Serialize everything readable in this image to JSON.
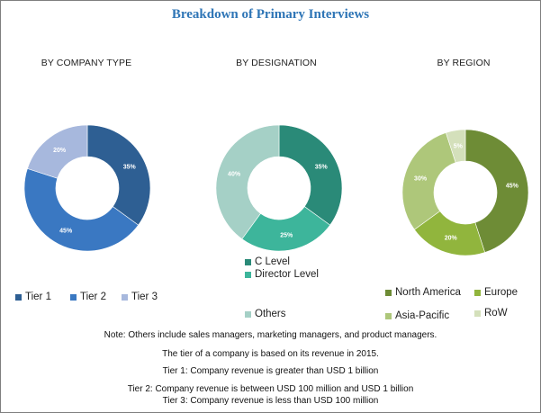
{
  "title": "Breakdown of Primary Interviews",
  "chart_data": [
    {
      "type": "pie",
      "title": "BY COMPANY TYPE",
      "categories": [
        "Tier 1",
        "Tier 2",
        "Tier 3"
      ],
      "values": [
        35,
        45,
        20
      ],
      "labels": [
        "35%",
        "45%",
        "20%"
      ],
      "colors": [
        "#2e5f93",
        "#3a78c2",
        "#a7b8dd"
      ],
      "legend": "bottom"
    },
    {
      "type": "pie",
      "title": "BY DESIGNATION",
      "categories": [
        "C Level",
        "Director Level",
        "Others"
      ],
      "values": [
        35,
        25,
        40
      ],
      "labels": [
        "35%",
        "25%",
        "40%"
      ],
      "colors": [
        "#2a8a78",
        "#3db59b",
        "#a5d0c6"
      ],
      "legend": "bottom"
    },
    {
      "type": "pie",
      "title": "BY REGION",
      "categories": [
        "North America",
        "Europe",
        "Asia-Pacific",
        "RoW"
      ],
      "values": [
        45,
        20,
        30,
        5
      ],
      "labels": [
        "45%",
        "20%",
        "30%",
        "5%"
      ],
      "colors": [
        "#6e8c36",
        "#91b53d",
        "#aec77a",
        "#d4e0bb"
      ],
      "legend": "bottom"
    }
  ],
  "notes": [
    "Note: Others include sales managers, marketing managers, and product managers.",
    "The tier of a company is based on its revenue in 2015.",
    "Tier 1: Company revenue is greater than USD 1 billion",
    "Tier 2: Company revenue is between USD 100 million and USD 1 billion",
    "Tier 3: Company revenue is less than USD 100 million"
  ]
}
